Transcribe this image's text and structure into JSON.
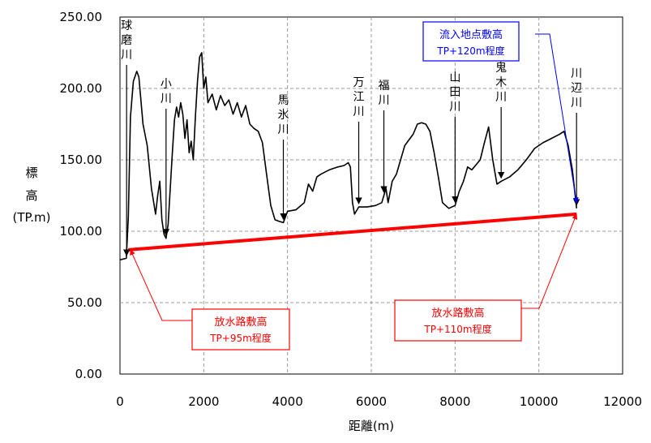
{
  "chart_data": {
    "type": "line",
    "xlabel": "距離(m)",
    "ylabel": [
      "標",
      "高",
      "(TP.m)"
    ],
    "xlim": [
      0,
      12000
    ],
    "ylim": [
      0,
      250
    ],
    "x_ticks": [
      "0",
      "2000",
      "4000",
      "6000",
      "8000",
      "10000",
      "12000"
    ],
    "y_ticks": [
      "0.00",
      "50.00",
      "100.00",
      "150.00",
      "200.00",
      "250.00"
    ],
    "grid": true,
    "series": [
      {
        "color": "#000000",
        "points": [
          [
            0,
            80
          ],
          [
            150,
            81
          ],
          [
            200,
            110
          ],
          [
            250,
            180
          ],
          [
            320,
            205
          ],
          [
            400,
            212
          ],
          [
            450,
            208
          ],
          [
            550,
            175
          ],
          [
            650,
            160
          ],
          [
            750,
            130
          ],
          [
            850,
            112
          ],
          [
            900,
            125
          ],
          [
            950,
            135
          ],
          [
            1000,
            108
          ],
          [
            1050,
            98
          ],
          [
            1100,
            95
          ],
          [
            1150,
            105
          ],
          [
            1200,
            130
          ],
          [
            1250,
            155
          ],
          [
            1300,
            178
          ],
          [
            1350,
            187
          ],
          [
            1400,
            180
          ],
          [
            1450,
            190
          ],
          [
            1500,
            182
          ],
          [
            1550,
            165
          ],
          [
            1600,
            178
          ],
          [
            1650,
            155
          ],
          [
            1700,
            163
          ],
          [
            1750,
            150
          ],
          [
            1800,
            180
          ],
          [
            1850,
            205
          ],
          [
            1900,
            222
          ],
          [
            1950,
            225
          ],
          [
            2000,
            200
          ],
          [
            2050,
            208
          ],
          [
            2100,
            190
          ],
          [
            2200,
            196
          ],
          [
            2300,
            185
          ],
          [
            2400,
            195
          ],
          [
            2500,
            188
          ],
          [
            2600,
            192
          ],
          [
            2700,
            182
          ],
          [
            2800,
            190
          ],
          [
            2900,
            180
          ],
          [
            3000,
            188
          ],
          [
            3100,
            175
          ],
          [
            3200,
            172
          ],
          [
            3300,
            170
          ],
          [
            3400,
            162
          ],
          [
            3500,
            140
          ],
          [
            3600,
            118
          ],
          [
            3700,
            108
          ],
          [
            3800,
            107
          ],
          [
            3900,
            106
          ],
          [
            4000,
            114
          ],
          [
            4200,
            115
          ],
          [
            4400,
            120
          ],
          [
            4500,
            133
          ],
          [
            4600,
            128
          ],
          [
            4700,
            138
          ],
          [
            4800,
            140
          ],
          [
            5000,
            143
          ],
          [
            5200,
            145
          ],
          [
            5350,
            146
          ],
          [
            5450,
            148
          ],
          [
            5500,
            145
          ],
          [
            5550,
            120
          ],
          [
            5600,
            112
          ],
          [
            5700,
            117
          ],
          [
            5900,
            117
          ],
          [
            6100,
            118
          ],
          [
            6250,
            120
          ],
          [
            6300,
            125
          ],
          [
            6350,
            130
          ],
          [
            6400,
            120
          ],
          [
            6500,
            135
          ],
          [
            6600,
            140
          ],
          [
            6800,
            160
          ],
          [
            7000,
            168
          ],
          [
            7100,
            175
          ],
          [
            7200,
            176
          ],
          [
            7300,
            175
          ],
          [
            7400,
            170
          ],
          [
            7500,
            155
          ],
          [
            7600,
            138
          ],
          [
            7700,
            120
          ],
          [
            7850,
            116
          ],
          [
            8000,
            118
          ],
          [
            8100,
            128
          ],
          [
            8200,
            135
          ],
          [
            8300,
            145
          ],
          [
            8400,
            143
          ],
          [
            8600,
            150
          ],
          [
            8700,
            162
          ],
          [
            8800,
            173
          ],
          [
            8900,
            150
          ],
          [
            9000,
            133
          ],
          [
            9100,
            135
          ],
          [
            9300,
            138
          ],
          [
            9500,
            143
          ],
          [
            9700,
            150
          ],
          [
            9900,
            158
          ],
          [
            10100,
            162
          ],
          [
            10300,
            165
          ],
          [
            10500,
            168
          ],
          [
            10600,
            170
          ],
          [
            10700,
            160
          ],
          [
            10800,
            143
          ],
          [
            10900,
            116
          ]
        ]
      },
      {
        "color": "#ff0000",
        "points": [
          [
            200,
            87
          ],
          [
            10900,
            112
          ]
        ]
      }
    ],
    "river_labels": [
      {
        "text": "球磨川",
        "x": 100
      },
      {
        "text": "小川",
        "x": 1100
      },
      {
        "text": "馬氷川",
        "x": 3900
      },
      {
        "text": "万江川",
        "x": 5700
      },
      {
        "text": "福川",
        "x": 6300
      },
      {
        "text": "山田川",
        "x": 8000
      },
      {
        "text": "鬼木川",
        "x": 9100
      },
      {
        "text": "川辺川",
        "x": 10900
      }
    ],
    "annotations": [
      {
        "title": "流入地点敷高",
        "sub": "TP+120m程度",
        "color": "#0000ff",
        "target": [
          10900,
          120
        ]
      },
      {
        "title": "放水路敷高",
        "sub": "TP+95m程度",
        "color": "#ff0000",
        "target": [
          250,
          87
        ]
      },
      {
        "title": "放水路敷高",
        "sub": "TP+110m程度",
        "color": "#ff0000",
        "target": [
          10900,
          112
        ]
      }
    ]
  }
}
